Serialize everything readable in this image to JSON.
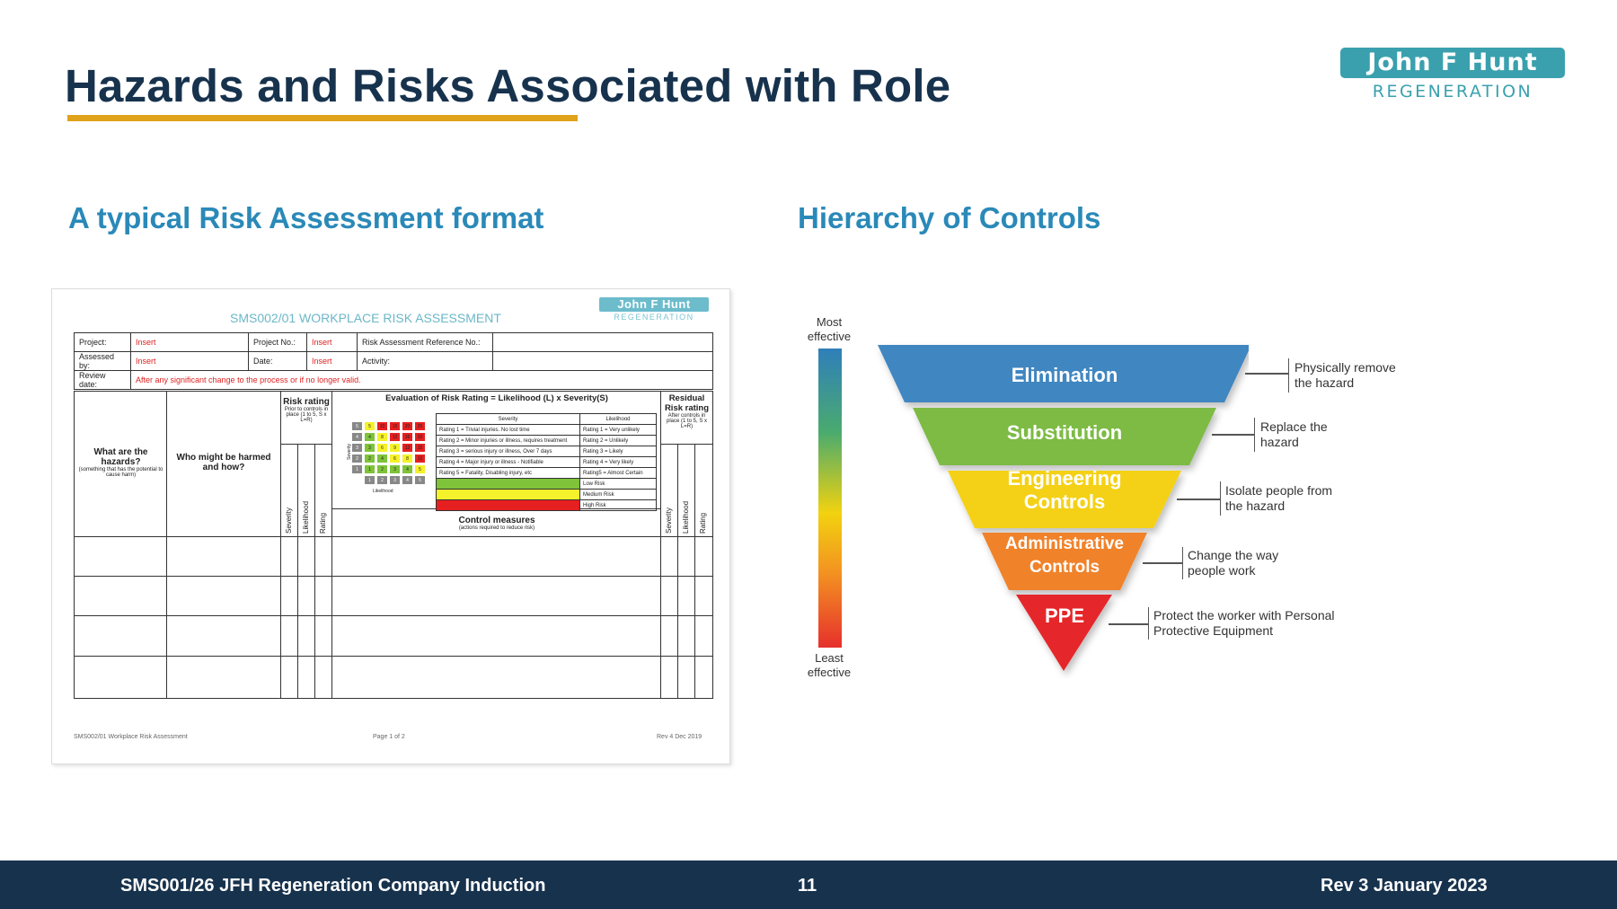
{
  "slide": {
    "title": "Hazards and Risks Associated with Role",
    "logo": {
      "name": "John F Hunt",
      "sub": "REGENERATION"
    },
    "left_heading": "A typical Risk Assessment format",
    "right_heading": "Hierarchy of Controls"
  },
  "risk_doc": {
    "title": "SMS002/01 WORKPLACE RISK ASSESSMENT",
    "logo": {
      "name": "John F Hunt",
      "sub": "REGENERATION"
    },
    "header_rows": [
      {
        "label1": "Project:",
        "value1": "Insert",
        "label2": "Project No.:",
        "value2": "Insert",
        "label3": "Risk Assessment Reference No.:"
      },
      {
        "label1": "Assessed by:",
        "value1": "Insert",
        "label2": "Date:",
        "value2": "Insert",
        "label3": "Activity:"
      }
    ],
    "review": {
      "label": "Review date:",
      "value": "After any significant change to the process or if no longer valid."
    },
    "columns": {
      "hazards": "What are the hazards?",
      "hazards_note": "(something that has the potential to cause harm)",
      "who": "Who might be harmed and how?",
      "risk_rating": "Risk rating",
      "risk_note": "Prior to controls in place (1 to 5, S x L=R)",
      "evaluation": "Evaluation of Risk Rating = Likelihood (L) x Severity(S)",
      "residual": "Residual Risk rating",
      "residual_note": "After controls in place (1 to 5, S x L=R)",
      "control": "Control measures",
      "control_note": "(actions required to reduce risk)",
      "severity": "Severity",
      "likelihood": "Likelihood",
      "rating": "Rating"
    },
    "matrix_labels": {
      "side": "Severity",
      "bottom": "Likelihood"
    },
    "legend": {
      "head_severity": "Severity",
      "head_likelihood": "Likelihood",
      "rows": [
        {
          "s": "Rating 1 = Trivial injuries. No lost time",
          "l": "Rating 1 = Very unlikely"
        },
        {
          "s": "Rating 2 = Minor injuries or illness, requires treatment",
          "l": "Rating 2 = Unlikely"
        },
        {
          "s": "Rating 3 = serious injury or illness, Over 7 days",
          "l": "Rating 3 = Likely"
        },
        {
          "s": "Rating 4 = Major injury or illness - Notifiable",
          "l": "Rating 4 = Very likely"
        },
        {
          "s": "Rating 5 = Fatality, Disabling injury, etc",
          "l": "Rating5 = Almost Certain"
        }
      ],
      "levels": [
        {
          "label": "Low Risk",
          "color": "#7ec33a"
        },
        {
          "label": "Medium Risk",
          "color": "#f5f12a"
        },
        {
          "label": "High Risk",
          "color": "#e62020"
        }
      ]
    },
    "footer": {
      "left": "SMS002/01 Workplace Risk Assessment",
      "center": "Page 1 of 2",
      "right": "Rev 4 Dec 2019"
    }
  },
  "hierarchy": {
    "most": "Most effective",
    "least": "Least effective",
    "levels": [
      {
        "name": "Elimination",
        "desc": "Physically remove the hazard",
        "color": "#3f86c1"
      },
      {
        "name": "Substitution",
        "desc": "Replace the hazard",
        "color": "#7dbb45"
      },
      {
        "name": "Engineering Controls",
        "desc": "Isolate people from the hazard",
        "color": "#f4d116"
      },
      {
        "name": "Administrative Controls",
        "desc": "Change the way people work",
        "color": "#f0822a"
      },
      {
        "name": "PPE",
        "desc": "Protect the worker with Personal Protective Equipment",
        "color": "#e5282c"
      }
    ]
  },
  "footer": {
    "left": "SMS001/26 JFH Regeneration Company Induction",
    "center": "11",
    "right": "Rev 3 January 2023"
  }
}
